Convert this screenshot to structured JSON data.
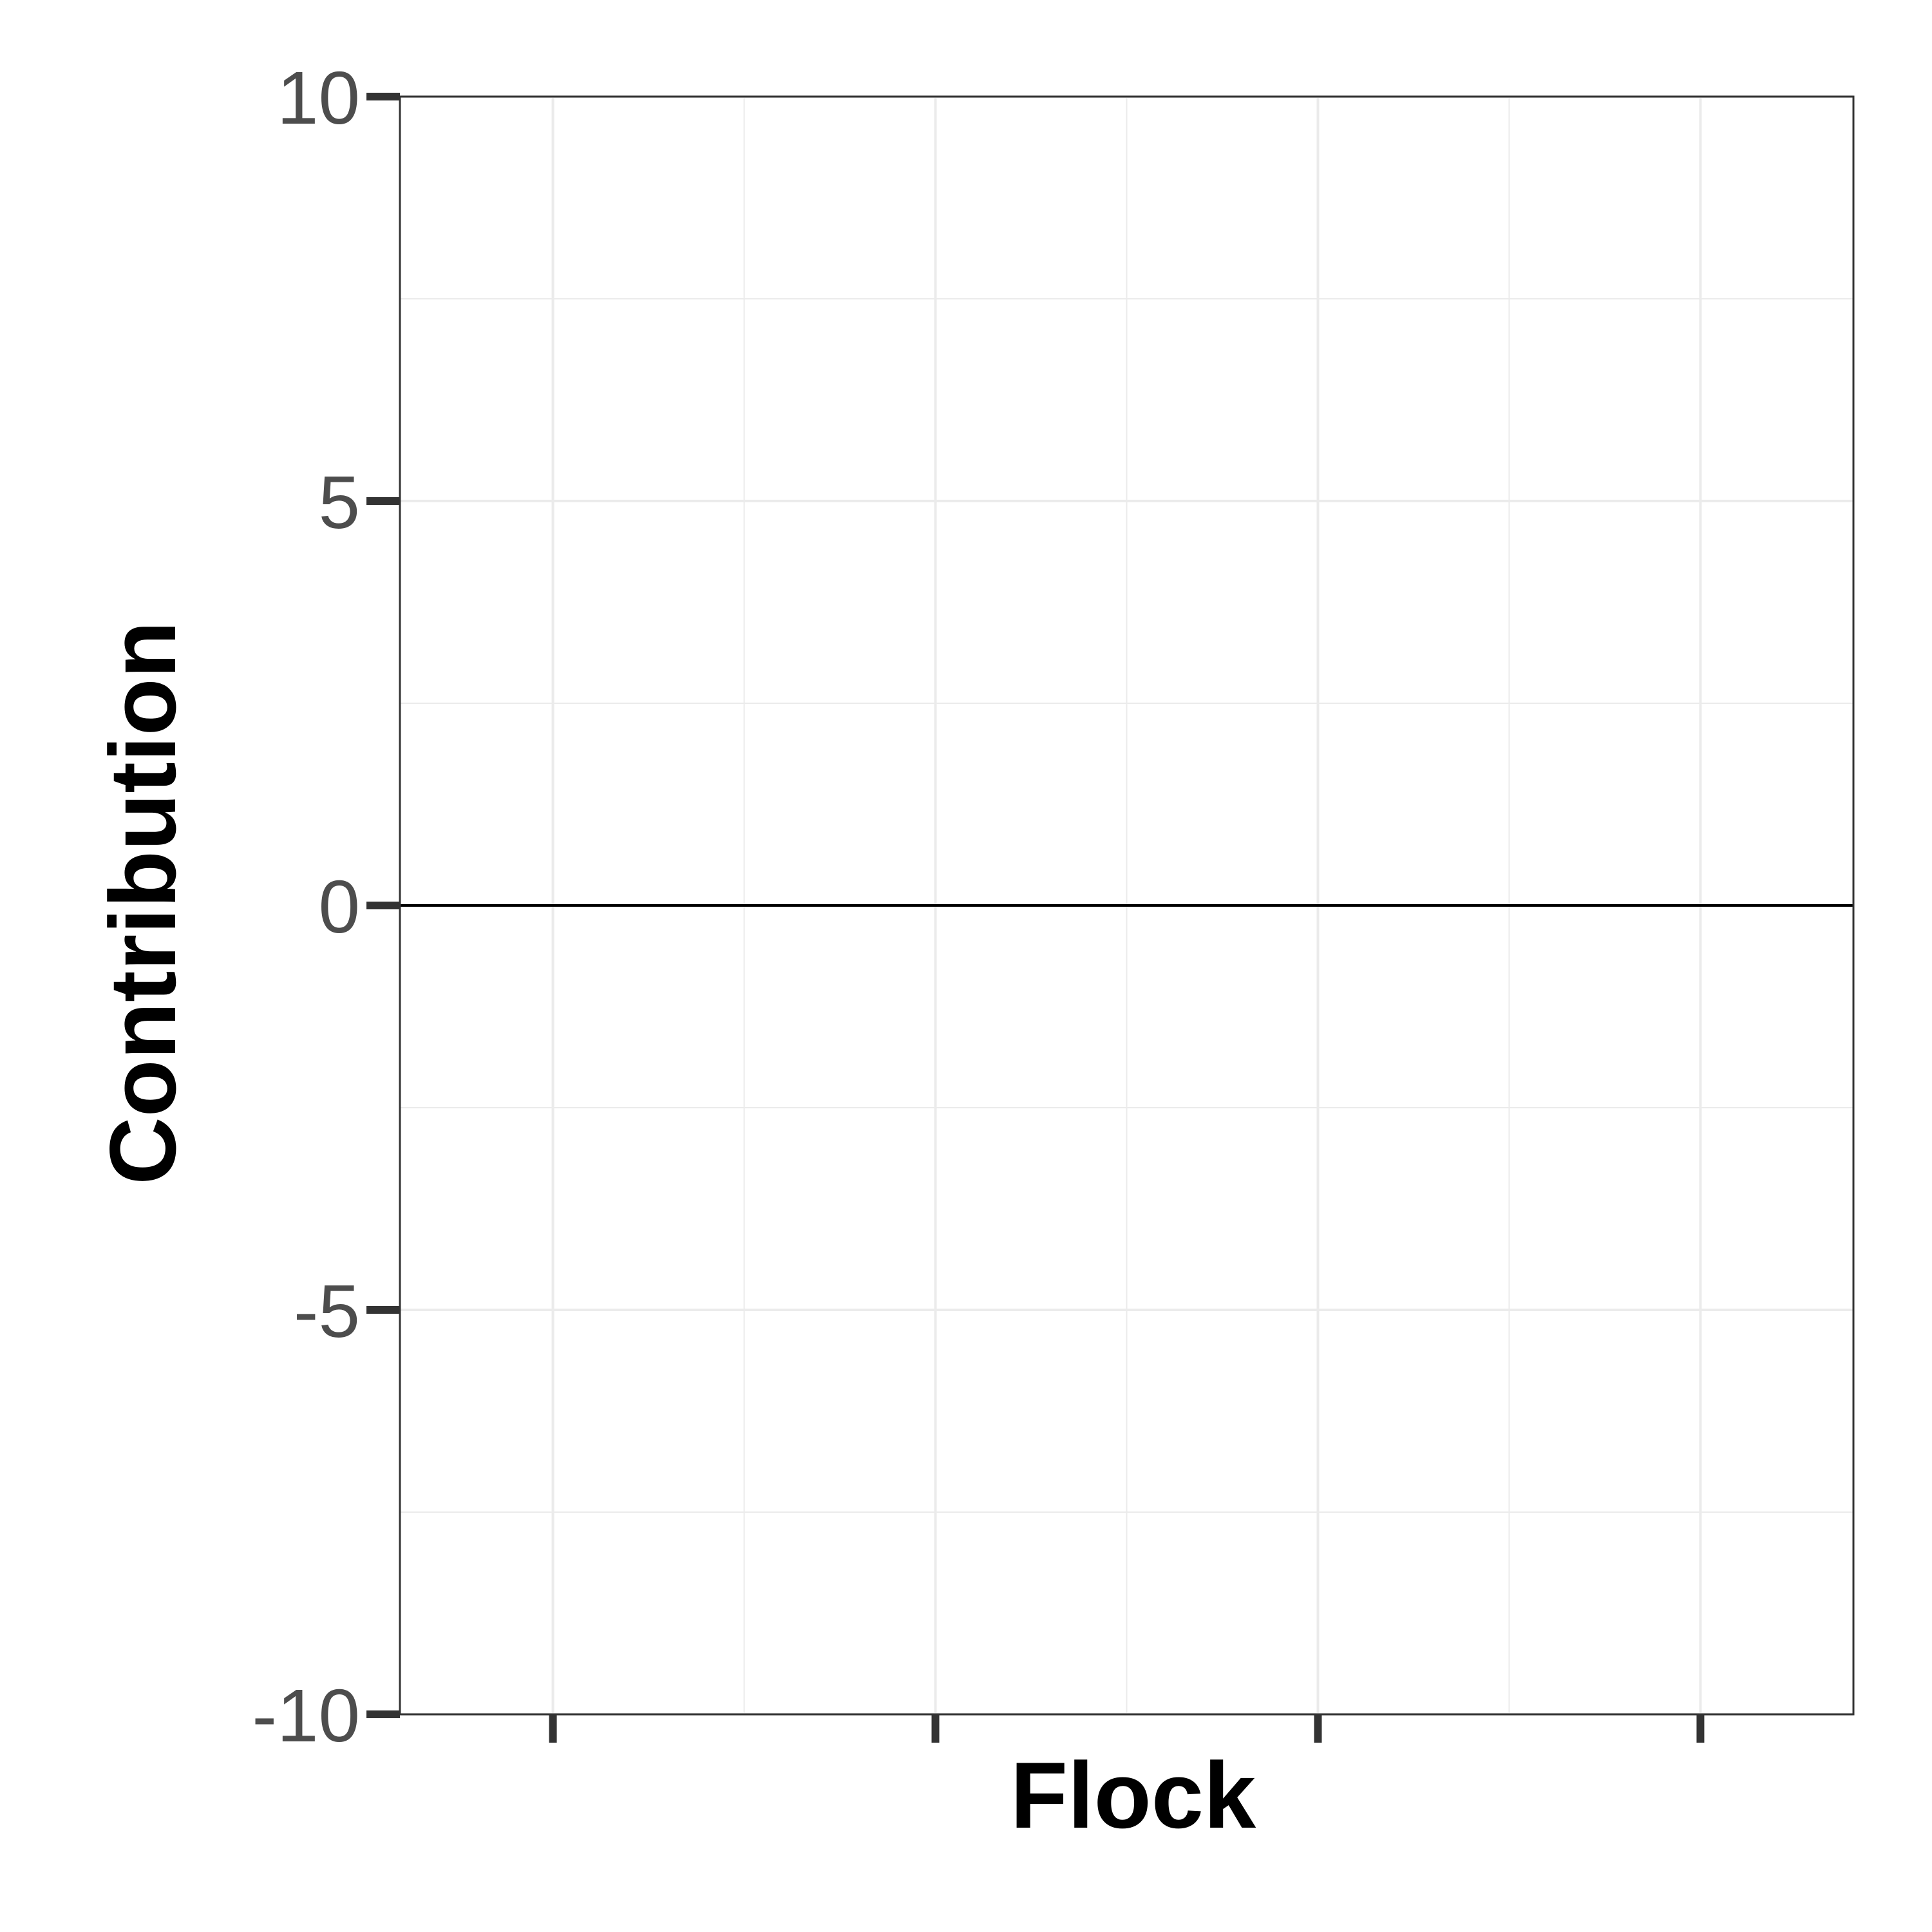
{
  "chart_data": {
    "type": "bar",
    "title": "",
    "xlabel": "Flock",
    "ylabel": "Contribution",
    "ylim": [
      -10,
      10
    ],
    "y_ticks": [
      -10,
      -5,
      0,
      5,
      10
    ],
    "y_tick_labels": [
      "-10",
      "-5",
      "0",
      "5",
      "10"
    ],
    "x_tick_count": 4,
    "x_tick_labels": [],
    "series": [],
    "reference_line": 0,
    "grid": true,
    "legend": "none",
    "colors": {
      "background": "#ffffff",
      "grid": "#ebebeb",
      "panel_border": "#333333",
      "axis_ticks": "#333333",
      "tick_labels": "#4d4d4d",
      "zero_line": "#000000",
      "axis_title": "#000000"
    }
  }
}
